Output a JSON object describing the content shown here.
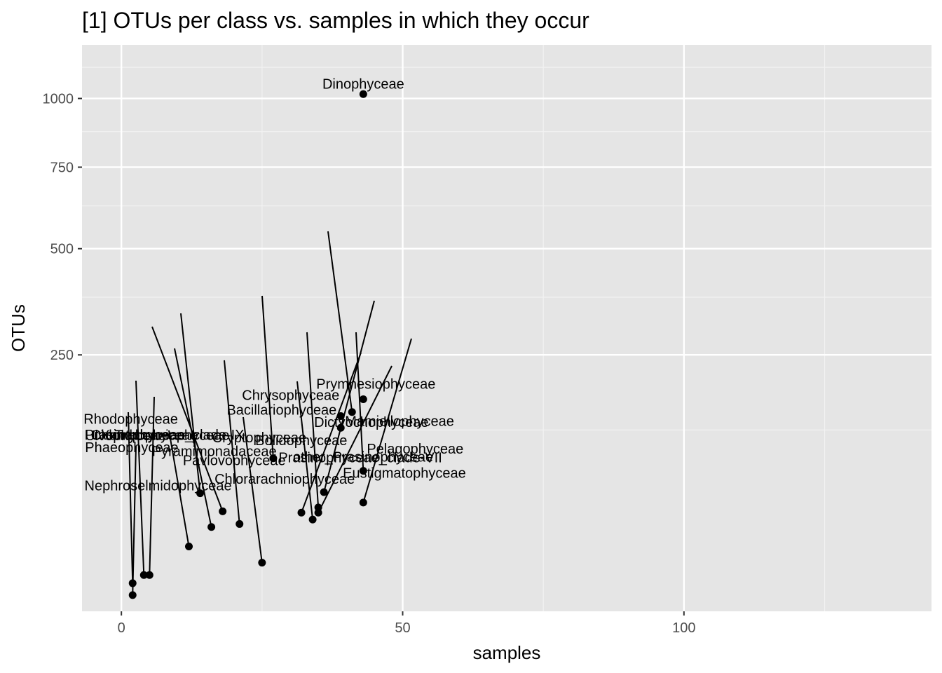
{
  "chart_data": {
    "type": "scatter",
    "title": "[1] OTUs per class vs. samples in which they occur",
    "xlabel": "samples",
    "ylabel": "OTUs",
    "x_scale": "linear",
    "y_scale": "sqrt",
    "xlim": [
      -7,
      144
    ],
    "ylim": [
      0,
      1220
    ],
    "x_ticks": [
      0,
      50,
      100
    ],
    "x_tick_labels": [
      "0",
      "50",
      "100"
    ],
    "y_ticks": [
      250,
      500,
      750,
      1000
    ],
    "y_tick_labels": [
      "250",
      "500",
      "750",
      "1000"
    ],
    "grid": true,
    "point_color": "#000000",
    "panel_color": "#e5e5e5",
    "grid_color": "#ffffff",
    "points": [
      {
        "label": "Dinophyceae",
        "x": 43,
        "y": 1017
      },
      {
        "label": "Prymnesiophyceae",
        "x": 43,
        "y": 171
      },
      {
        "label": "Chrysophyceae",
        "x": 41,
        "y": 151
      },
      {
        "label": "Bacillariophyceae",
        "x": 39,
        "y": 145
      },
      {
        "label": "Mamiellophyceae",
        "x": 39,
        "y": 128
      },
      {
        "label": "Cryptophyceae",
        "x": 27,
        "y": 89
      },
      {
        "label": "Prasinophyceae_clade-VII",
        "x": 43,
        "y": 75
      },
      {
        "label": "Dictyochophyceae",
        "x": 36,
        "y": 54
      },
      {
        "label": "Trebouxiophyceae",
        "x": 14,
        "y": 53
      },
      {
        "label": "Pelagophyceae",
        "x": 43,
        "y": 45
      },
      {
        "label": "Bolidophyceae",
        "x": 35,
        "y": 41
      },
      {
        "label": "Chlorophyceae",
        "x": 18,
        "y": 38
      },
      {
        "label": "Eustigmatophyceae",
        "x": 35,
        "y": 37
      },
      {
        "label": "other_Prasinophyceae",
        "x": 32,
        "y": 37
      },
      {
        "label": "Chlorarachniophyceae",
        "x": 34,
        "y": 32
      },
      {
        "label": "Pyramimonadaceae",
        "x": 21,
        "y": 29
      },
      {
        "label": "Prasinophyceae_clade-IX",
        "x": 16,
        "y": 27
      },
      {
        "label": "Pavlovophyceae",
        "x": 25,
        "y": 9
      },
      {
        "label": "Nephroselmidophyceae",
        "x": 12,
        "y": 16
      },
      {
        "label": "Rhodophyceae",
        "x": 4,
        "y": 5
      },
      {
        "label": "Xanthophyceae",
        "x": 5,
        "y": 5
      },
      {
        "label": "Ulvophyceae",
        "x": 2,
        "y": 3
      },
      {
        "label": "Phaeophyceae",
        "x": 2,
        "y": 1
      }
    ]
  }
}
